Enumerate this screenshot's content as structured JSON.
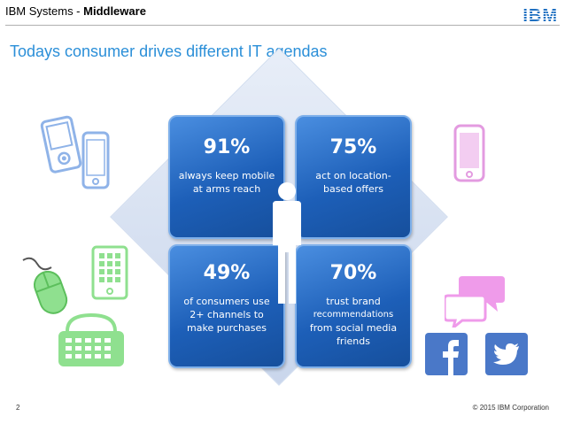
{
  "header": {
    "company": "IBM Systems - ",
    "section": "Middleware",
    "logo_text": "IBM"
  },
  "title": "Todays consumer drives different IT agendas",
  "tiles": [
    {
      "pct": "91%",
      "text": "always keep mobile at arms reach"
    },
    {
      "pct": "75%",
      "text": "act on location-based offers"
    },
    {
      "pct": "49%",
      "text": "of consumers use 2+ channels to make purchases"
    },
    {
      "pct": "70%",
      "text_1": "trust brand",
      "text_2": "recommendations",
      "text_3": "from social media friends"
    }
  ],
  "footer": {
    "page_number": "2",
    "copyright": "© 2015 IBM Corporation"
  },
  "colors": {
    "title": "#2b8fd8",
    "tile": "#1d5fb8",
    "phone_blue": "#8fb3e8",
    "phone_pink": "#e39be0",
    "green": "#8fe08f",
    "facebook": "#4a78c8",
    "twitter": "#4a78c8"
  },
  "icons": [
    "phone-icon",
    "camera-phone-icon",
    "smartphone-icon",
    "mouse-icon",
    "tablet-icon",
    "shopping-basket-icon",
    "chat-bubbles-icon",
    "facebook-icon",
    "twitter-icon",
    "person-icon"
  ]
}
